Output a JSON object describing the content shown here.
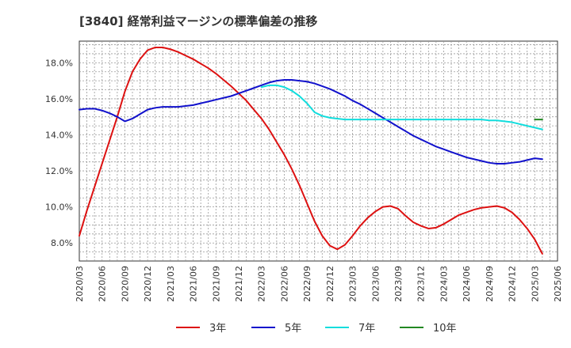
{
  "chart_data": {
    "type": "line",
    "title": "[3840]  経常利益マージンの標準偏差の推移",
    "xlabel": "",
    "ylabel": "",
    "x": [
      "2020/03",
      "2020/06",
      "2020/09",
      "2020/12",
      "2021/03",
      "2021/06",
      "2021/09",
      "2021/12",
      "2022/03",
      "2022/06",
      "2022/09",
      "2022/12",
      "2023/03",
      "2023/06",
      "2023/09",
      "2023/12",
      "2024/03",
      "2024/06",
      "2024/09",
      "2024/12",
      "2025/03",
      "2025/06"
    ],
    "y_ticks": [
      "8.0%",
      "10.0%",
      "12.0%",
      "14.0%",
      "16.0%",
      "18.0%"
    ],
    "ylim": [
      7.0,
      19.2
    ],
    "xlim_months": [
      0,
      63
    ],
    "grid": true,
    "legend_position": "bottom",
    "series": [
      {
        "name": "3年",
        "color": "#dd1111",
        "points": [
          [
            0,
            8.4
          ],
          [
            1,
            9.8
          ],
          [
            2,
            11.1
          ],
          [
            3,
            12.4
          ],
          [
            4,
            13.7
          ],
          [
            5,
            15.0
          ],
          [
            6,
            16.4
          ],
          [
            7,
            17.5
          ],
          [
            8,
            18.2
          ],
          [
            9,
            18.7
          ],
          [
            10,
            18.85
          ],
          [
            11,
            18.85
          ],
          [
            12,
            18.75
          ],
          [
            13,
            18.6
          ],
          [
            14,
            18.4
          ],
          [
            15,
            18.2
          ],
          [
            16,
            17.95
          ],
          [
            17,
            17.7
          ],
          [
            18,
            17.4
          ],
          [
            19,
            17.05
          ],
          [
            20,
            16.7
          ],
          [
            21,
            16.3
          ],
          [
            22,
            15.9
          ],
          [
            23,
            15.4
          ],
          [
            24,
            14.9
          ],
          [
            25,
            14.3
          ],
          [
            26,
            13.6
          ],
          [
            27,
            12.9
          ],
          [
            28,
            12.1
          ],
          [
            29,
            11.2
          ],
          [
            30,
            10.2
          ],
          [
            31,
            9.2
          ],
          [
            32,
            8.4
          ],
          [
            33,
            7.85
          ],
          [
            34,
            7.65
          ],
          [
            35,
            7.9
          ],
          [
            36,
            8.4
          ],
          [
            37,
            8.95
          ],
          [
            38,
            9.4
          ],
          [
            39,
            9.75
          ],
          [
            40,
            10.0
          ],
          [
            41,
            10.05
          ],
          [
            42,
            9.9
          ],
          [
            43,
            9.5
          ],
          [
            44,
            9.15
          ],
          [
            45,
            8.95
          ],
          [
            46,
            8.8
          ],
          [
            47,
            8.85
          ],
          [
            48,
            9.05
          ],
          [
            49,
            9.3
          ],
          [
            50,
            9.55
          ],
          [
            51,
            9.7
          ],
          [
            52,
            9.85
          ],
          [
            53,
            9.95
          ],
          [
            54,
            10.0
          ],
          [
            55,
            10.05
          ],
          [
            56,
            9.95
          ],
          [
            57,
            9.7
          ],
          [
            58,
            9.3
          ],
          [
            59,
            8.8
          ],
          [
            60,
            8.2
          ],
          [
            61,
            7.4
          ]
        ]
      },
      {
        "name": "5年",
        "color": "#1111cc",
        "points": [
          [
            0,
            15.4
          ],
          [
            1,
            15.45
          ],
          [
            2,
            15.45
          ],
          [
            3,
            15.35
          ],
          [
            4,
            15.2
          ],
          [
            5,
            15.0
          ],
          [
            6,
            14.75
          ],
          [
            7,
            14.9
          ],
          [
            8,
            15.15
          ],
          [
            9,
            15.4
          ],
          [
            10,
            15.5
          ],
          [
            11,
            15.55
          ],
          [
            12,
            15.55
          ],
          [
            13,
            15.55
          ],
          [
            14,
            15.6
          ],
          [
            15,
            15.65
          ],
          [
            16,
            15.75
          ],
          [
            17,
            15.85
          ],
          [
            18,
            15.95
          ],
          [
            19,
            16.05
          ],
          [
            20,
            16.15
          ],
          [
            21,
            16.3
          ],
          [
            22,
            16.45
          ],
          [
            23,
            16.6
          ],
          [
            24,
            16.75
          ],
          [
            25,
            16.9
          ],
          [
            26,
            17.0
          ],
          [
            27,
            17.05
          ],
          [
            28,
            17.05
          ],
          [
            29,
            17.0
          ],
          [
            30,
            16.95
          ],
          [
            31,
            16.85
          ],
          [
            32,
            16.7
          ],
          [
            33,
            16.55
          ],
          [
            34,
            16.35
          ],
          [
            35,
            16.15
          ],
          [
            36,
            15.9
          ],
          [
            37,
            15.7
          ],
          [
            38,
            15.45
          ],
          [
            39,
            15.2
          ],
          [
            40,
            14.95
          ],
          [
            41,
            14.7
          ],
          [
            42,
            14.45
          ],
          [
            43,
            14.2
          ],
          [
            44,
            13.95
          ],
          [
            45,
            13.75
          ],
          [
            46,
            13.55
          ],
          [
            47,
            13.35
          ],
          [
            48,
            13.2
          ],
          [
            49,
            13.05
          ],
          [
            50,
            12.9
          ],
          [
            51,
            12.75
          ],
          [
            52,
            12.65
          ],
          [
            53,
            12.55
          ],
          [
            54,
            12.45
          ],
          [
            55,
            12.4
          ],
          [
            56,
            12.4
          ],
          [
            57,
            12.45
          ],
          [
            58,
            12.5
          ],
          [
            59,
            12.6
          ],
          [
            60,
            12.7
          ],
          [
            61,
            12.65
          ]
        ]
      },
      {
        "name": "7年",
        "color": "#11dddd",
        "points": [
          [
            24,
            16.65
          ],
          [
            25,
            16.75
          ],
          [
            26,
            16.75
          ],
          [
            27,
            16.65
          ],
          [
            28,
            16.45
          ],
          [
            29,
            16.15
          ],
          [
            30,
            15.75
          ],
          [
            31,
            15.25
          ],
          [
            32,
            15.05
          ],
          [
            33,
            14.95
          ],
          [
            34,
            14.9
          ],
          [
            35,
            14.85
          ],
          [
            36,
            14.85
          ],
          [
            37,
            14.85
          ],
          [
            38,
            14.85
          ],
          [
            39,
            14.85
          ],
          [
            40,
            14.85
          ],
          [
            41,
            14.85
          ],
          [
            42,
            14.85
          ],
          [
            43,
            14.85
          ],
          [
            44,
            14.85
          ],
          [
            45,
            14.85
          ],
          [
            46,
            14.85
          ],
          [
            47,
            14.85
          ],
          [
            48,
            14.85
          ],
          [
            49,
            14.85
          ],
          [
            50,
            14.85
          ],
          [
            51,
            14.85
          ],
          [
            52,
            14.85
          ],
          [
            53,
            14.85
          ],
          [
            54,
            14.8
          ],
          [
            55,
            14.8
          ],
          [
            56,
            14.75
          ],
          [
            57,
            14.7
          ],
          [
            58,
            14.6
          ],
          [
            59,
            14.5
          ],
          [
            60,
            14.4
          ],
          [
            61,
            14.3
          ]
        ]
      },
      {
        "name": "10年",
        "color": "#228822",
        "points": [
          [
            60,
            14.85
          ],
          [
            61,
            14.85
          ]
        ]
      }
    ]
  }
}
